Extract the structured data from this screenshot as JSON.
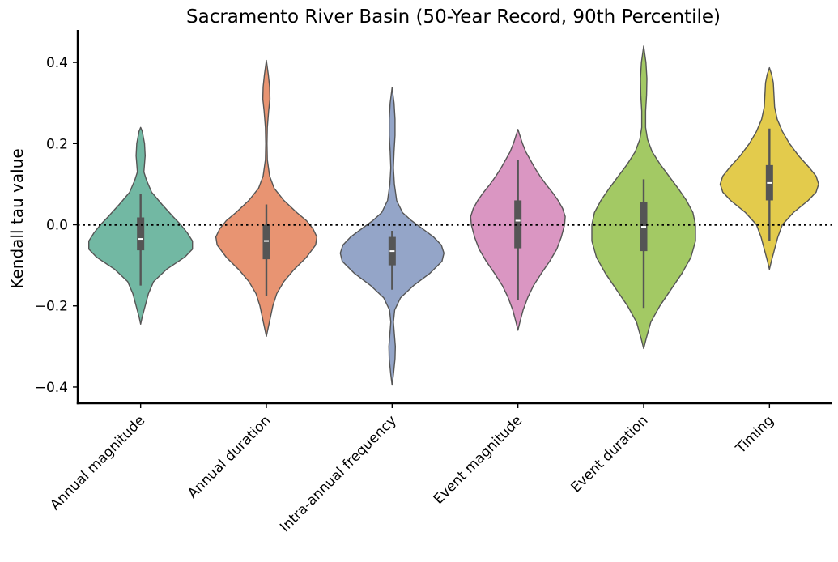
{
  "chart_data": {
    "type": "violin",
    "title": "Sacramento River Basin (50-Year Record, 90th Percentile)",
    "xlabel": "",
    "ylabel": "Kendall tau value",
    "ylim": [
      -0.44,
      0.48
    ],
    "yticks": [
      0.4,
      0.2,
      0.0,
      -0.2,
      -0.4
    ],
    "ytick_labels": [
      "0.4",
      "0.2",
      "0.0",
      "−0.2",
      "−0.4"
    ],
    "reference_line": {
      "y": 0.0,
      "style": "dotted",
      "color": "#000000"
    },
    "categories": [
      "Annual magnitude",
      "Annual duration",
      "Intra-annual frequency",
      "Event magnitude",
      "Event duration",
      "Timing"
    ],
    "series": [
      {
        "category": "Annual magnitude",
        "color": "#72b8a3",
        "min": -0.245,
        "max": 0.24,
        "whisker": [
          -0.15,
          0.077
        ],
        "q1": -0.063,
        "median": -0.035,
        "q3": 0.018,
        "density": [
          [
            -0.245,
            0
          ],
          [
            -0.23,
            0.02
          ],
          [
            -0.2,
            0.07
          ],
          [
            -0.17,
            0.12
          ],
          [
            -0.14,
            0.2
          ],
          [
            -0.11,
            0.4
          ],
          [
            -0.08,
            0.68
          ],
          [
            -0.06,
            0.8
          ],
          [
            -0.04,
            0.8
          ],
          [
            -0.02,
            0.72
          ],
          [
            0.0,
            0.62
          ],
          [
            0.02,
            0.5
          ],
          [
            0.05,
            0.33
          ],
          [
            0.08,
            0.17
          ],
          [
            0.11,
            0.09
          ],
          [
            0.13,
            0.05
          ],
          [
            0.15,
            0.06
          ],
          [
            0.17,
            0.07
          ],
          [
            0.2,
            0.06
          ],
          [
            0.23,
            0.025
          ],
          [
            0.24,
            0
          ]
        ]
      },
      {
        "category": "Annual duration",
        "color": "#e89472",
        "min": -0.275,
        "max": 0.405,
        "whisker": [
          -0.175,
          0.05
        ],
        "q1": -0.085,
        "median": -0.04,
        "q3": 0.0,
        "density": [
          [
            -0.275,
            0
          ],
          [
            -0.26,
            0.02
          ],
          [
            -0.23,
            0.06
          ],
          [
            -0.2,
            0.1
          ],
          [
            -0.17,
            0.16
          ],
          [
            -0.14,
            0.27
          ],
          [
            -0.11,
            0.43
          ],
          [
            -0.08,
            0.62
          ],
          [
            -0.05,
            0.76
          ],
          [
            -0.03,
            0.78
          ],
          [
            -0.01,
            0.72
          ],
          [
            0.01,
            0.62
          ],
          [
            0.03,
            0.47
          ],
          [
            0.06,
            0.27
          ],
          [
            0.09,
            0.12
          ],
          [
            0.12,
            0.05
          ],
          [
            0.16,
            0.015
          ],
          [
            0.2,
            0.01
          ],
          [
            0.24,
            0.015
          ],
          [
            0.28,
            0.035
          ],
          [
            0.31,
            0.055
          ],
          [
            0.34,
            0.05
          ],
          [
            0.37,
            0.03
          ],
          [
            0.405,
            0
          ]
        ]
      },
      {
        "category": "Intra-annual frequency",
        "color": "#94a5c8",
        "min": -0.395,
        "max": 0.338,
        "whisker": [
          -0.16,
          -0.015
        ],
        "q1": -0.1,
        "median": -0.065,
        "q3": -0.03,
        "density": [
          [
            -0.395,
            0
          ],
          [
            -0.37,
            0.02
          ],
          [
            -0.33,
            0.045
          ],
          [
            -0.3,
            0.05
          ],
          [
            -0.27,
            0.035
          ],
          [
            -0.24,
            0.02
          ],
          [
            -0.21,
            0.04
          ],
          [
            -0.18,
            0.13
          ],
          [
            -0.15,
            0.33
          ],
          [
            -0.12,
            0.58
          ],
          [
            -0.09,
            0.77
          ],
          [
            -0.07,
            0.8
          ],
          [
            -0.05,
            0.76
          ],
          [
            -0.03,
            0.64
          ],
          [
            -0.01,
            0.47
          ],
          [
            0.01,
            0.3
          ],
          [
            0.03,
            0.16
          ],
          [
            0.06,
            0.07
          ],
          [
            0.1,
            0.035
          ],
          [
            0.14,
            0.02
          ],
          [
            0.18,
            0.03
          ],
          [
            0.22,
            0.045
          ],
          [
            0.26,
            0.045
          ],
          [
            0.3,
            0.03
          ],
          [
            0.338,
            0
          ]
        ]
      },
      {
        "category": "Event magnitude",
        "color": "#da96c2",
        "min": -0.26,
        "max": 0.235,
        "whisker": [
          -0.185,
          0.16
        ],
        "q1": -0.058,
        "median": 0.01,
        "q3": 0.06,
        "density": [
          [
            -0.26,
            0
          ],
          [
            -0.24,
            0.03
          ],
          [
            -0.21,
            0.08
          ],
          [
            -0.18,
            0.15
          ],
          [
            -0.15,
            0.24
          ],
          [
            -0.12,
            0.36
          ],
          [
            -0.09,
            0.49
          ],
          [
            -0.06,
            0.6
          ],
          [
            -0.03,
            0.67
          ],
          [
            0.0,
            0.72
          ],
          [
            0.02,
            0.73
          ],
          [
            0.04,
            0.69
          ],
          [
            0.06,
            0.62
          ],
          [
            0.08,
            0.53
          ],
          [
            0.1,
            0.43
          ],
          [
            0.12,
            0.34
          ],
          [
            0.14,
            0.26
          ],
          [
            0.16,
            0.19
          ],
          [
            0.18,
            0.12
          ],
          [
            0.2,
            0.07
          ],
          [
            0.22,
            0.03
          ],
          [
            0.235,
            0
          ]
        ]
      },
      {
        "category": "Event duration",
        "color": "#a3c964",
        "min": -0.305,
        "max": 0.44,
        "whisker": [
          -0.205,
          0.112
        ],
        "q1": -0.065,
        "median": -0.005,
        "q3": 0.055,
        "density": [
          [
            -0.305,
            0
          ],
          [
            -0.28,
            0.04
          ],
          [
            -0.24,
            0.11
          ],
          [
            -0.2,
            0.25
          ],
          [
            -0.16,
            0.42
          ],
          [
            -0.12,
            0.59
          ],
          [
            -0.08,
            0.73
          ],
          [
            -0.04,
            0.8
          ],
          [
            0.0,
            0.8
          ],
          [
            0.03,
            0.76
          ],
          [
            0.06,
            0.66
          ],
          [
            0.09,
            0.53
          ],
          [
            0.12,
            0.39
          ],
          [
            0.15,
            0.25
          ],
          [
            0.18,
            0.13
          ],
          [
            0.21,
            0.06
          ],
          [
            0.24,
            0.03
          ],
          [
            0.28,
            0.03
          ],
          [
            0.32,
            0.045
          ],
          [
            0.36,
            0.05
          ],
          [
            0.4,
            0.035
          ],
          [
            0.44,
            0
          ]
        ]
      },
      {
        "category": "Timing",
        "color": "#e3cb4c",
        "min": -0.11,
        "max": 0.387,
        "whisker": [
          -0.04,
          0.237
        ],
        "q1": 0.06,
        "median": 0.103,
        "q3": 0.147,
        "density": [
          [
            -0.11,
            0
          ],
          [
            -0.09,
            0.03
          ],
          [
            -0.06,
            0.08
          ],
          [
            -0.03,
            0.13
          ],
          [
            0.0,
            0.2
          ],
          [
            0.03,
            0.37
          ],
          [
            0.06,
            0.6
          ],
          [
            0.08,
            0.72
          ],
          [
            0.1,
            0.76
          ],
          [
            0.12,
            0.72
          ],
          [
            0.14,
            0.62
          ],
          [
            0.17,
            0.45
          ],
          [
            0.2,
            0.31
          ],
          [
            0.23,
            0.2
          ],
          [
            0.26,
            0.12
          ],
          [
            0.29,
            0.08
          ],
          [
            0.32,
            0.07
          ],
          [
            0.35,
            0.06
          ],
          [
            0.37,
            0.035
          ],
          [
            0.387,
            0
          ]
        ]
      }
    ]
  }
}
